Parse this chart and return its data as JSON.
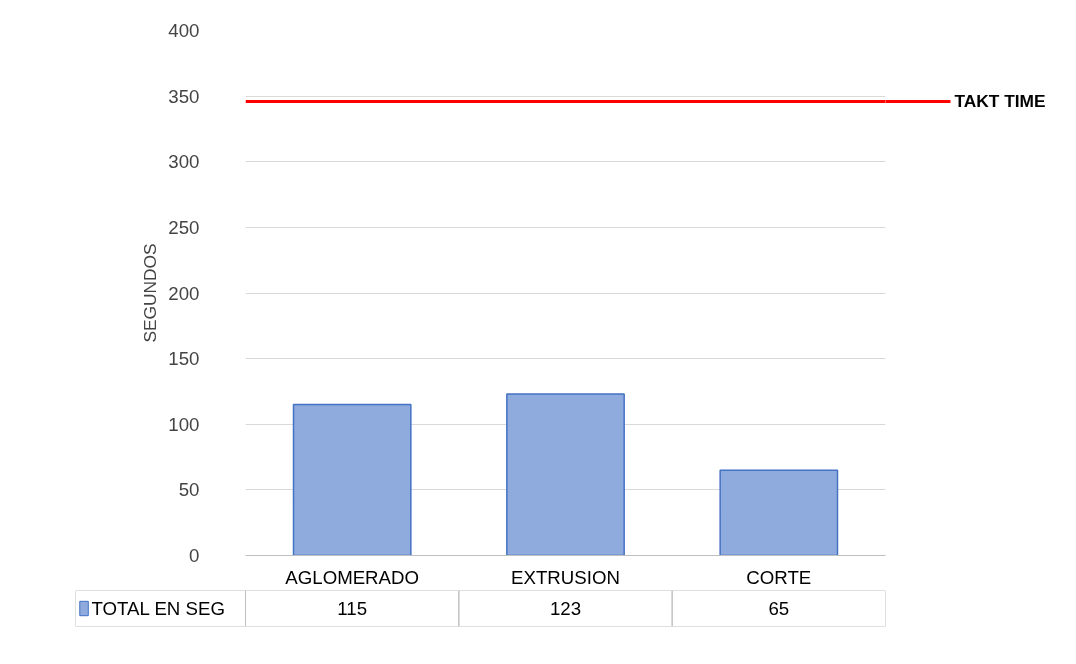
{
  "chart_data": {
    "type": "bar",
    "ylabel": "SEGUNDOS",
    "categories": [
      "AGLOMERADO",
      "EXTRUSION",
      "CORTE"
    ],
    "series": [
      {
        "name": "TOTAL EN SEG",
        "color": "#8faadc",
        "values": [
          115,
          123,
          65
        ]
      }
    ],
    "ylim": [
      0,
      400
    ],
    "yticks": [
      0,
      50,
      100,
      150,
      200,
      250,
      300,
      350,
      400
    ],
    "grid": "y",
    "legend": "bottom",
    "data_labels": true,
    "ref_lines": [
      {
        "axis": "y",
        "value": 346,
        "label": "TAKT TIME",
        "color": "#ff0000"
      }
    ]
  }
}
